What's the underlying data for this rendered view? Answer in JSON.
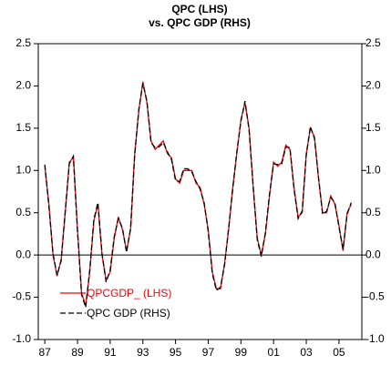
{
  "chart_data": {
    "type": "line",
    "title": "QPC (LHS)",
    "subtitle": "vs. QPC GDP (RHS)",
    "x": [
      1987,
      1987.25,
      1987.5,
      1987.75,
      1988,
      1988.25,
      1988.5,
      1988.75,
      1989,
      1989.25,
      1989.5,
      1989.75,
      1990,
      1990.25,
      1990.5,
      1990.75,
      1991,
      1991.25,
      1991.5,
      1991.75,
      1992,
      1992.25,
      1992.5,
      1992.75,
      1993,
      1993.25,
      1993.5,
      1993.75,
      1994,
      1994.25,
      1994.5,
      1994.75,
      1995,
      1995.25,
      1995.5,
      1995.75,
      1996,
      1996.25,
      1996.5,
      1996.75,
      1997,
      1997.25,
      1997.5,
      1997.75,
      1998,
      1998.25,
      1998.5,
      1998.75,
      1999,
      1999.25,
      1999.5,
      1999.75,
      2000,
      2000.25,
      2000.5,
      2000.75,
      2001,
      2001.25,
      2001.5,
      2001.75,
      2002,
      2002.25,
      2002.5,
      2002.75,
      2003,
      2003.25,
      2003.5,
      2003.75,
      2004,
      2004.25,
      2004.5,
      2004.75,
      2005,
      2005.25,
      2005.5,
      2005.75
    ],
    "series": [
      {
        "name": "QPCGDP_ (LHS)",
        "color": "#ff0000",
        "axis": "y",
        "values": [
          1.05,
          0.6,
          0.0,
          -0.25,
          -0.05,
          0.5,
          1.1,
          1.15,
          0.3,
          -0.45,
          -0.6,
          -0.2,
          0.4,
          0.6,
          0.0,
          -0.3,
          -0.2,
          0.2,
          0.45,
          0.3,
          0.05,
          0.3,
          1.2,
          1.7,
          2.05,
          1.8,
          1.35,
          1.25,
          1.3,
          1.35,
          1.2,
          1.15,
          0.9,
          0.85,
          1.0,
          1.0,
          1.0,
          0.85,
          0.8,
          0.6,
          0.3,
          -0.2,
          -0.4,
          -0.4,
          -0.1,
          0.3,
          0.8,
          1.2,
          1.6,
          1.8,
          1.5,
          0.8,
          0.2,
          0.0,
          0.25,
          0.7,
          1.1,
          1.05,
          1.1,
          1.3,
          1.25,
          0.8,
          0.45,
          0.5,
          1.2,
          1.5,
          1.4,
          0.9,
          0.5,
          0.5,
          0.7,
          0.6,
          0.35,
          0.05,
          0.5,
          0.6
        ]
      },
      {
        "name": "QPC GDP (RHS)",
        "color": "#000000",
        "axis": "y2",
        "values": [
          1.07,
          0.58,
          0.02,
          -0.24,
          -0.07,
          0.52,
          1.08,
          1.17,
          0.28,
          -0.47,
          -0.62,
          -0.18,
          0.42,
          0.62,
          0.02,
          -0.32,
          -0.18,
          0.22,
          0.43,
          0.32,
          0.03,
          0.32,
          1.18,
          1.72,
          2.03,
          1.82,
          1.33,
          1.27,
          1.28,
          1.33,
          1.22,
          1.13,
          0.88,
          0.87,
          1.02,
          1.02,
          0.98,
          0.87,
          0.78,
          0.62,
          0.28,
          -0.22,
          -0.42,
          -0.38,
          -0.12,
          0.32,
          0.78,
          1.22,
          1.58,
          1.82,
          1.48,
          0.82,
          0.18,
          -0.02,
          0.27,
          0.72,
          1.08,
          1.07,
          1.08,
          1.28,
          1.27,
          0.78,
          0.43,
          0.52,
          1.18,
          1.52,
          1.38,
          0.92,
          0.48,
          0.52,
          0.68,
          0.62,
          0.33,
          0.07,
          0.48,
          0.62
        ]
      }
    ],
    "xlim": [
      1986.6,
      2006.4
    ],
    "xticks": [
      {
        "value": 1987,
        "label": "87"
      },
      {
        "value": 1989,
        "label": "89"
      },
      {
        "value": 1991,
        "label": "91"
      },
      {
        "value": 1993,
        "label": "93"
      },
      {
        "value": 1995,
        "label": "95"
      },
      {
        "value": 1997,
        "label": "97"
      },
      {
        "value": 1999,
        "label": "99"
      },
      {
        "value": 2001,
        "label": "01"
      },
      {
        "value": 2003,
        "label": "03"
      },
      {
        "value": 2005,
        "label": "05"
      }
    ],
    "ylim": [
      -1,
      2.5
    ],
    "yticks": [
      {
        "value": -1,
        "label": "-1.0"
      },
      -0.5,
      {
        "value": 0,
        "label": "0.0"
      },
      0.5,
      {
        "value": 1,
        "label": "1.0"
      },
      1.5,
      {
        "value": 2,
        "label": "2.0"
      },
      2.5
    ],
    "y2lim": [
      -1,
      2.5
    ],
    "y2ticks": [
      {
        "value": -1,
        "label": "-1.0"
      },
      -0.5,
      {
        "value": 0,
        "label": "0.0"
      },
      0.5,
      {
        "value": 1,
        "label": "1.0"
      },
      1.5,
      {
        "value": 2,
        "label": "2.0"
      },
      2.5
    ],
    "legend": "lower left"
  }
}
